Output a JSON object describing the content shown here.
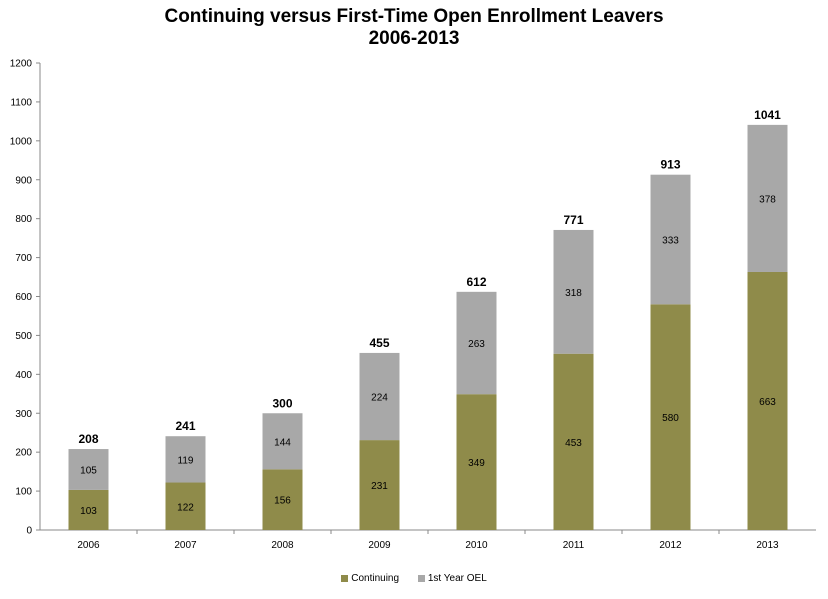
{
  "chart_data": {
    "type": "bar",
    "stacked": true,
    "title": "Continuing versus First-Time Open Enrollment Leavers",
    "subtitle": "2006-2013",
    "categories": [
      "2006",
      "2007",
      "2008",
      "2009",
      "2010",
      "2011",
      "2012",
      "2013"
    ],
    "series": [
      {
        "name": "Continuing",
        "color": "#8f8b4a",
        "values": [
          103,
          122,
          156,
          231,
          349,
          453,
          580,
          663
        ]
      },
      {
        "name": "1st Year OEL",
        "color": "#a8a8a8",
        "values": [
          105,
          119,
          144,
          224,
          263,
          318,
          333,
          378
        ]
      }
    ],
    "totals": [
      208,
      241,
      300,
      455,
      612,
      771,
      913,
      1041
    ],
    "ylim": [
      0,
      1200
    ],
    "yticks": [
      0,
      100,
      200,
      300,
      400,
      500,
      600,
      700,
      800,
      900,
      1000,
      1100,
      1200
    ],
    "grid": false,
    "legend": "bottom"
  }
}
